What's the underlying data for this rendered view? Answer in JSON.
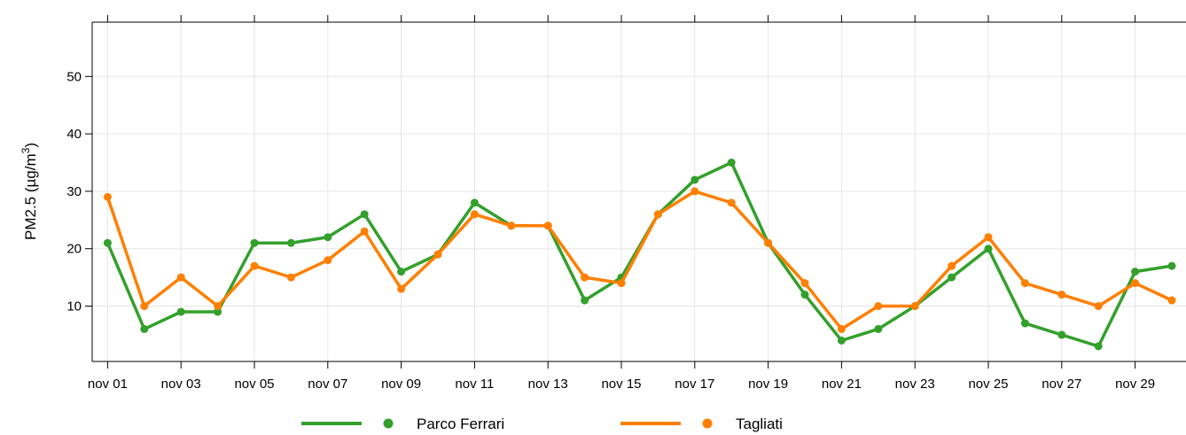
{
  "chart_data": {
    "type": "line",
    "ylabel_main": "PM2.5 (µg/m",
    "ylabel_sup": "3",
    "ylabel_close": ")",
    "x_tick_labels": [
      "nov 01",
      "nov 03",
      "nov 05",
      "nov 07",
      "nov 09",
      "nov 11",
      "nov 13",
      "nov 15",
      "nov 17",
      "nov 19",
      "nov 21",
      "nov 23",
      "nov 25",
      "nov 27",
      "nov 29"
    ],
    "y_ticks": [
      10,
      20,
      30,
      40,
      50
    ],
    "ylim": [
      0.5,
      59.5
    ],
    "x_day_range": [
      1,
      30
    ],
    "grid": true,
    "legend_position": "bottom",
    "x": [
      1,
      2,
      3,
      4,
      5,
      6,
      7,
      8,
      9,
      10,
      11,
      12,
      13,
      14,
      15,
      16,
      17,
      18,
      19,
      20,
      21,
      22,
      23,
      24,
      25,
      26,
      27,
      28,
      29,
      30
    ],
    "series": [
      {
        "name": "Parco Ferrari",
        "color": "#33a02c",
        "values": [
          21,
          6,
          9,
          9,
          21,
          21,
          22,
          26,
          16,
          19,
          28,
          24,
          24,
          11,
          15,
          26,
          32,
          35,
          21,
          12,
          4,
          6,
          10,
          15,
          20,
          7,
          5,
          3,
          16,
          17
        ]
      },
      {
        "name": "Tagliati",
        "color": "#ff7f00",
        "values": [
          29,
          10,
          15,
          10,
          17,
          15,
          18,
          23,
          13,
          19,
          26,
          24,
          24,
          15,
          14,
          26,
          30,
          28,
          21,
          14,
          6,
          10,
          10,
          17,
          22,
          14,
          12,
          10,
          14,
          11
        ]
      }
    ]
  }
}
